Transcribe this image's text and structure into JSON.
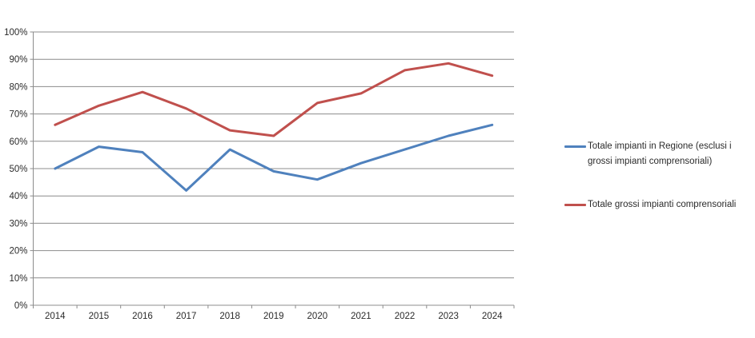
{
  "chart_data": {
    "type": "line",
    "title": "",
    "xlabel": "",
    "ylabel": "",
    "categories": [
      "2014",
      "2015",
      "2016",
      "2017",
      "2018",
      "2019",
      "2020",
      "2021",
      "2022",
      "2023",
      "2024"
    ],
    "series": [
      {
        "name": "Totale impianti in Regione (esclusi i grossi impianti comprensoriali)",
        "color": "#4F81BD",
        "values": [
          50,
          58,
          56,
          42,
          57,
          49,
          46,
          52,
          57,
          62,
          66
        ]
      },
      {
        "name": "Totale grossi impianti comprensoriali",
        "color": "#C0504D",
        "values": [
          66,
          73,
          78,
          72,
          64,
          62,
          74,
          77.5,
          86,
          88.5,
          84
        ]
      }
    ],
    "ylim": [
      0,
      100
    ],
    "ytick_step": 10,
    "ytick_labels": [
      "0%",
      "10%",
      "20%",
      "30%",
      "40%",
      "50%",
      "60%",
      "70%",
      "80%",
      "90%",
      "100%"
    ],
    "grid": true,
    "legend_position": "right"
  },
  "legend": {
    "items": [
      {
        "lines": [
          "Totale impianti in Regione (esclusi i",
          "grossi impianti comprensoriali)"
        ],
        "color": "#4F81BD"
      },
      {
        "lines": [
          "Totale grossi impianti comprensoriali"
        ],
        "color": "#C0504D"
      }
    ]
  },
  "style": {
    "background": "#FFFFFF",
    "gridline_color": "#8C8C8C",
    "axis_color": "#8C8C8C",
    "text_color": "#2B2B2B",
    "series1_color": "#4F81BD",
    "series2_color": "#C0504D"
  }
}
